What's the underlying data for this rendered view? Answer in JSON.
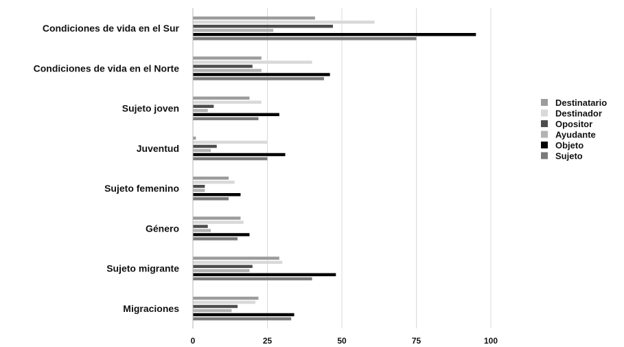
{
  "chart_data": {
    "type": "bar",
    "orientation": "horizontal",
    "title": "",
    "xlabel": "",
    "ylabel": "",
    "xlim": [
      0,
      100
    ],
    "xticks": [
      0,
      25,
      50,
      75,
      100
    ],
    "grid": true,
    "legend_position": "right",
    "categories": [
      "Condiciones de vida en el Sur",
      "Condiciones de vida en el Norte",
      "Sujeto joven",
      "Juventud",
      "Sujeto femenino",
      "Género",
      "Sujeto migrante",
      "Migraciones"
    ],
    "series": [
      {
        "name": "Destinatario",
        "color": "#9c9c9c",
        "values": [
          41,
          23,
          19,
          1,
          12,
          16,
          29,
          22
        ]
      },
      {
        "name": "Destinador",
        "color": "#d9d9d9",
        "values": [
          61,
          40,
          23,
          25,
          14,
          17,
          30,
          21
        ]
      },
      {
        "name": "Opositor",
        "color": "#4d4d4d",
        "values": [
          47,
          20,
          7,
          8,
          4,
          5,
          20,
          15
        ]
      },
      {
        "name": "Ayudante",
        "color": "#b3b3b3",
        "values": [
          27,
          23,
          5,
          6,
          4,
          6,
          19,
          13
        ]
      },
      {
        "name": "Objeto",
        "color": "#000000",
        "values": [
          95,
          46,
          29,
          31,
          16,
          19,
          48,
          34
        ]
      },
      {
        "name": "Sujeto",
        "color": "#7a7a7a",
        "values": [
          75,
          44,
          22,
          25,
          12,
          15,
          40,
          33
        ]
      }
    ]
  }
}
